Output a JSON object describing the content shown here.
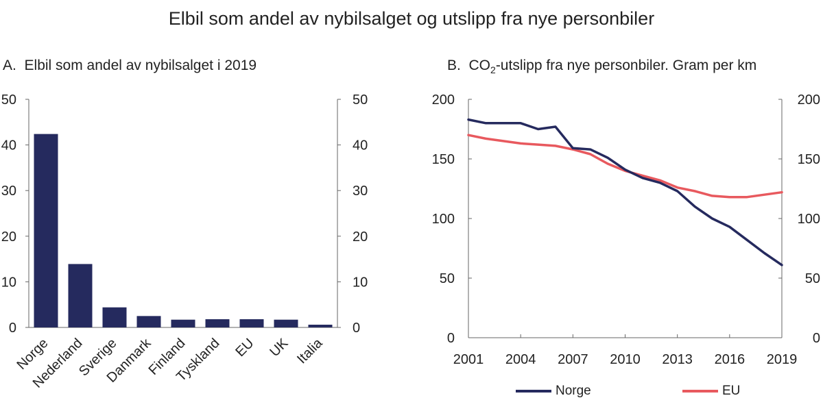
{
  "title": "Elbil som andel av nybilsalget og utslipp fra nye personbiler",
  "panel_a": {
    "letter": "A.",
    "title": "Elbil som andel av nybilsalget i 2019"
  },
  "panel_b": {
    "letter": "B.",
    "title_pre": "CO",
    "title_sub": "2",
    "title_post": "-utslipp fra nye personbiler. Gram per km"
  },
  "colors": {
    "bar": "#252a5e",
    "norge": "#252a5e",
    "eu": "#e8595e"
  },
  "chart_data": [
    {
      "type": "bar",
      "title": "Elbil som andel av nybilsalget i 2019",
      "categories": [
        "Norge",
        "Nederland",
        "Sverige",
        "Danmark",
        "Finland",
        "Tyskland",
        "EU",
        "UK",
        "Italia"
      ],
      "values": [
        42.4,
        13.9,
        4.4,
        2.5,
        1.7,
        1.8,
        1.8,
        1.7,
        0.6
      ],
      "ylim": [
        0,
        50
      ],
      "yticks": [
        0,
        10,
        20,
        30,
        40,
        50
      ],
      "y_axis_both_sides": true
    },
    {
      "type": "line",
      "title": "CO2-utslipp fra nye personbiler. Gram per km",
      "x": [
        2001,
        2002,
        2003,
        2004,
        2005,
        2006,
        2007,
        2008,
        2009,
        2010,
        2011,
        2012,
        2013,
        2014,
        2015,
        2016,
        2017,
        2018,
        2019
      ],
      "xlim": [
        2001,
        2019
      ],
      "xticks": [
        2001,
        2004,
        2007,
        2010,
        2013,
        2016,
        2019
      ],
      "ylim": [
        0,
        200
      ],
      "yticks": [
        0,
        50,
        100,
        150,
        200
      ],
      "y_axis_both_sides": true,
      "legend_position": "bottom",
      "series": [
        {
          "name": "Norge",
          "color": "#252a5e",
          "values": [
            183,
            180,
            180,
            180,
            175,
            177,
            159,
            158,
            151,
            141,
            134,
            130,
            123,
            110,
            100,
            93,
            82,
            71,
            61
          ]
        },
        {
          "name": "EU",
          "color": "#e8595e",
          "values": [
            170,
            167,
            165,
            163,
            162,
            161,
            158,
            154,
            146,
            140,
            136,
            132,
            126,
            123,
            119,
            118,
            118,
            120,
            122
          ]
        }
      ]
    }
  ]
}
